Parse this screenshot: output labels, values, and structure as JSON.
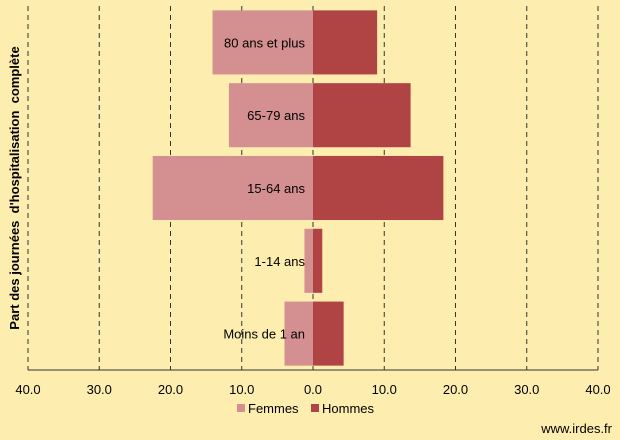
{
  "chart_data": {
    "type": "bar",
    "orientation": "horizontal",
    "layout": "population-pyramid",
    "ylabel": "Part des journées  d'hospitalisation  complète",
    "xlim": [
      -40,
      40
    ],
    "x_ticks": [
      -40,
      -30,
      -20,
      -10,
      0,
      10,
      20,
      30,
      40
    ],
    "x_tick_labels": [
      "40.0",
      "30.0",
      "20.0",
      "10.0",
      "0.0",
      "10.0",
      "20.0",
      "30.0",
      "40.0"
    ],
    "grid": "vertical-dashed",
    "legend": "bottom",
    "categories": [
      "80 ans et plus",
      "65-79 ans",
      "15-64 ans",
      "1-14 ans",
      "Moins de 1 an"
    ],
    "series": [
      {
        "name": "Femmes",
        "values": [
          14.1,
          11.8,
          22.5,
          1.2,
          4.0
        ],
        "color": "#d49090",
        "side": "left"
      },
      {
        "name": "Hommes",
        "values": [
          9.0,
          13.7,
          18.3,
          1.3,
          4.3
        ],
        "color": "#b04444",
        "side": "right"
      }
    ]
  },
  "footer": {
    "source": "www.irdes.fr"
  }
}
